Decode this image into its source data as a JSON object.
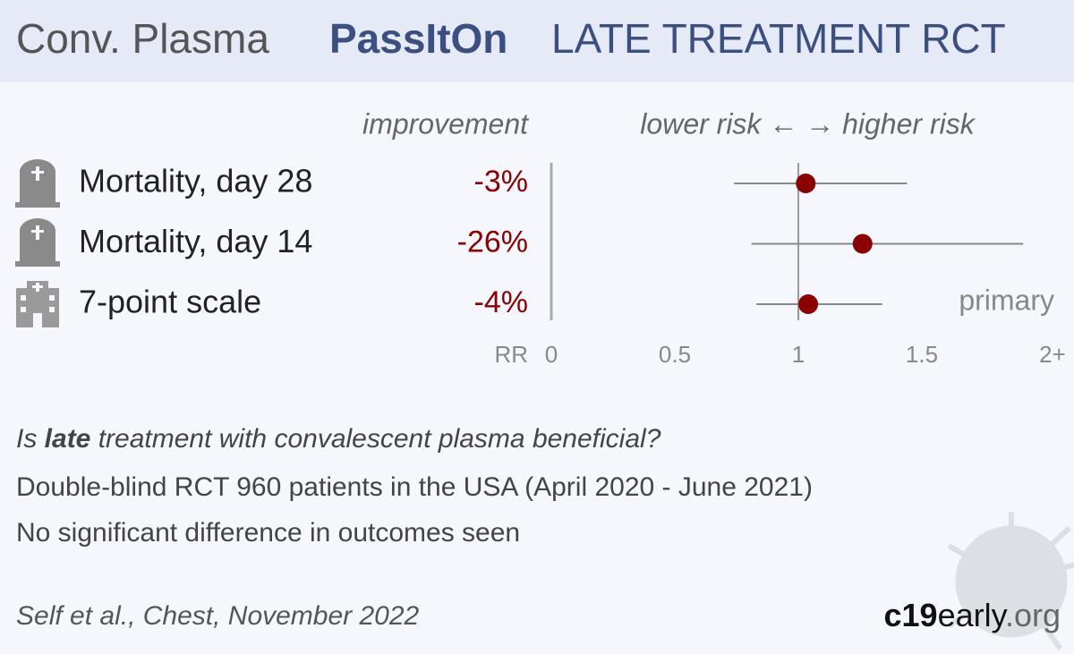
{
  "header": {
    "drug": "Conv. Plasma",
    "trial": "PassItOn",
    "stage": "LATE TREATMENT RCT"
  },
  "chart_data": {
    "type": "forest",
    "improvement_title": "improvement",
    "risk_title": "lower risk ← → higher risk",
    "categories": [
      "Mortality, day 28",
      "Mortality, day 14",
      "7-point scale"
    ],
    "improvement": [
      -3,
      -26,
      -4
    ],
    "improvement_labels": [
      "-3%",
      "-26%",
      "-4%"
    ],
    "values": [
      1.03,
      1.26,
      1.04
    ],
    "ci_low": [
      0.74,
      0.81,
      0.83
    ],
    "ci_high": [
      1.44,
      1.91,
      1.34
    ],
    "row_notes": [
      null,
      null,
      "primary"
    ],
    "color": "#8b0000",
    "ci_color": "#888888",
    "xlabel": "RR",
    "xlim": [
      0,
      2
    ],
    "xticks": [
      0,
      0.5,
      1,
      1.5,
      {
        "value": 2,
        "label": "2+"
      }
    ]
  },
  "summary": {
    "question": [
      "Is ",
      "late",
      " treatment with convalescent plasma beneficial?"
    ],
    "design": "Double-blind RCT 960 patients in the USA (April 2020 - June 2021)",
    "result": "No significant difference in outcomes seen"
  },
  "footer": {
    "citation": "Self et al., Chest, November 2022",
    "site_bold": "c19",
    "site_rest": "early",
    "site_tld": ".org"
  }
}
